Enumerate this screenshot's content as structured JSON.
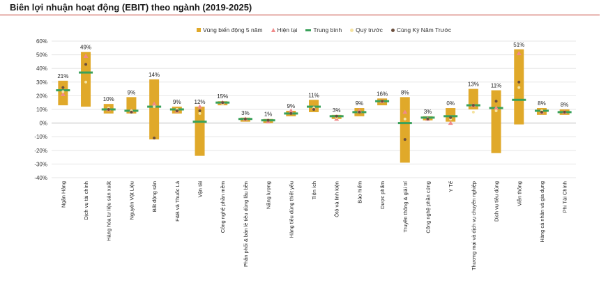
{
  "title": "Biên lợi nhuận hoạt động (EBIT) theo ngành (2019-2025)",
  "legend": {
    "band": "Vùng biến động 5 năm",
    "current": "Hiện tại",
    "average": "Trung bình",
    "prev_quarter": "Quý trước",
    "same_period": "Cùng Kỳ Năm Trước"
  },
  "colors": {
    "band": "#e0a92a",
    "current": "#f08a8a",
    "average": "#3aa15a",
    "prev_quarter": "#f5e3a0",
    "same_period": "#6b4e3d",
    "title_rule": "#c0392b"
  },
  "chart_data": {
    "type": "bar",
    "ylim": [
      -40,
      60
    ],
    "yticks": [
      "60%",
      "50%",
      "40%",
      "30%",
      "20%",
      "10%",
      "0%",
      "-10%",
      "-20%",
      "-30%",
      "-40%"
    ],
    "ytick_values": [
      60,
      50,
      40,
      30,
      20,
      10,
      0,
      -10,
      -20,
      -30,
      -40
    ],
    "grid": true,
    "categories": [
      "Ngân Hàng",
      "Dịch vụ tài chính",
      "Hàng hóa tư liệu sản xuất",
      "Nguyên Vật Liệu",
      "Bất động sản",
      "F&B và Thuốc Lá",
      "Vận tải",
      "Công nghệ phần mềm",
      "Phân phối & bán lẻ tiêu dùng lâu bền",
      "Năng lượng",
      "Hàng tiêu dùng thiết yếu",
      "Tiện ích",
      "Ôtô và linh kiện",
      "Bảo hiểm",
      "Dược phẩm",
      "Truyền thông & giải trí",
      "Công nghệ phần cứng",
      "Y Tế",
      "Thương mại và dịch vụ chuyên nghiệp",
      "Dịch vụ tiêu dùng",
      "Viễn thông",
      "Hàng cá nhân và gia dụng",
      "Phi Tài Chính"
    ],
    "labels": [
      "21%",
      "49%",
      "10%",
      "9%",
      "14%",
      "9%",
      "12%",
      "15%",
      "3%",
      "1%",
      "9%",
      "11%",
      "3%",
      "9%",
      "16%",
      "8%",
      "3%",
      "0%",
      "13%",
      "11%",
      "51%",
      "8%",
      "8%"
    ],
    "band_low": [
      13,
      12,
      7,
      7,
      -12,
      7,
      -24,
      13,
      1,
      0,
      5,
      8,
      3,
      5,
      13,
      -29,
      2,
      1,
      10,
      -22,
      -1,
      6,
      6
    ],
    "band_high": [
      31,
      52,
      14,
      19,
      32,
      12,
      12,
      16,
      4,
      3,
      9,
      17,
      6,
      11,
      18,
      19,
      5,
      11,
      25,
      24,
      54,
      11,
      10
    ],
    "current": [
      21,
      49,
      10,
      9,
      14,
      9,
      12,
      15,
      3,
      1,
      9,
      11,
      3,
      9,
      16,
      8,
      3,
      0,
      13,
      11,
      51,
      8,
      8
    ],
    "average": [
      24,
      37,
      10,
      9,
      12,
      10,
      1,
      15,
      3,
      2,
      7,
      12,
      5,
      8,
      16,
      0,
      4,
      5,
      13,
      11,
      17,
      9,
      8
    ],
    "prev_quarter": [
      23,
      30,
      11,
      9,
      12,
      10,
      7,
      14,
      3,
      2,
      7,
      11,
      4,
      8,
      16,
      3,
      3,
      3,
      8,
      9,
      26,
      9,
      8
    ],
    "same_period": [
      26,
      43,
      10,
      8,
      -11,
      9,
      9,
      15,
      3,
      2,
      7,
      10,
      5,
      8,
      16,
      -12,
      3,
      4,
      13,
      16,
      30,
      8,
      8
    ]
  }
}
